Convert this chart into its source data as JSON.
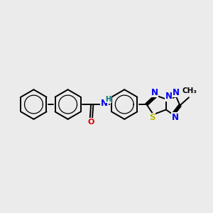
{
  "bg_color": "#ebebeb",
  "bond_color": "#000000",
  "bond_width": 1.4,
  "atom_colors": {
    "N": "#0000ee",
    "O": "#dd0000",
    "S": "#bbbb00",
    "H": "#007070",
    "C": "#000000"
  },
  "font_size_atom": 8.5,
  "fig_size": [
    3.0,
    3.0
  ],
  "dpi": 100
}
